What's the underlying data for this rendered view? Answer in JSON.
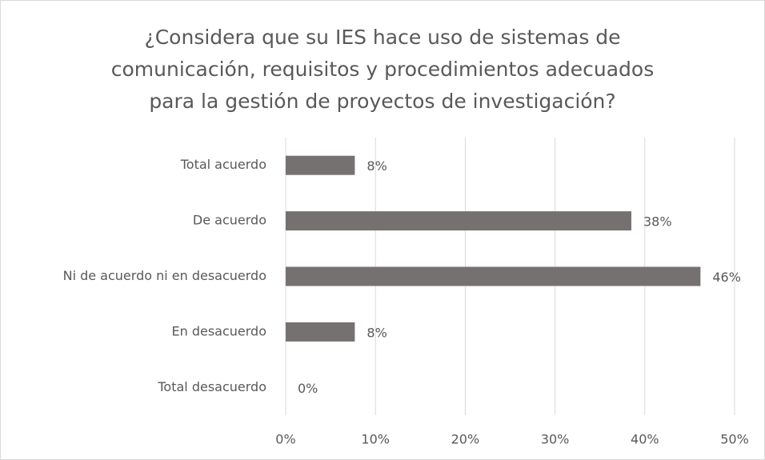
{
  "chart_data": {
    "type": "bar",
    "orientation": "horizontal",
    "title": [
      "¿Considera que su IES hace uso de sistemas de",
      "comunicación, requisitos y procedimientos adecuados",
      "para la gestión de proyectos de investigación?"
    ],
    "categories": [
      "Total acuerdo",
      "De acuerdo",
      "Ni de acuerdo ni en desacuerdo",
      "En desacuerdo",
      "Total desacuerdo"
    ],
    "values": [
      7.7,
      38.5,
      46.2,
      7.7,
      0
    ],
    "value_labels": [
      "8%",
      "38%",
      "46%",
      "8%",
      "0%"
    ],
    "color": "#767171",
    "xlim": [
      0,
      50
    ],
    "xticks": [
      {
        "value": 0,
        "label": "0%"
      },
      {
        "value": 10,
        "label": "10%"
      },
      {
        "value": 20,
        "label": "20%"
      },
      {
        "value": 30,
        "label": "30%"
      },
      {
        "value": 40,
        "label": "40%"
      },
      {
        "value": 50,
        "label": "50%"
      }
    ],
    "grid": true
  }
}
